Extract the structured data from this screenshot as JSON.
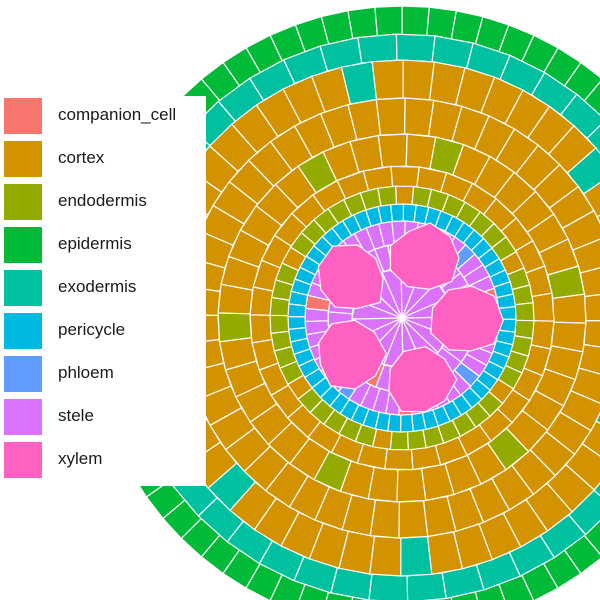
{
  "legend": {
    "items": [
      {
        "label": "companion_cell",
        "color": "#F8766D"
      },
      {
        "label": "cortex",
        "color": "#D39200"
      },
      {
        "label": "endodermis",
        "color": "#93AA00"
      },
      {
        "label": "epidermis",
        "color": "#00BA38"
      },
      {
        "label": "exodermis",
        "color": "#00C19F"
      },
      {
        "label": "pericycle",
        "color": "#00B9E3"
      },
      {
        "label": "phloem",
        "color": "#619CFF"
      },
      {
        "label": "stele",
        "color": "#DB72FB"
      },
      {
        "label": "xylem",
        "color": "#FF61C3"
      }
    ]
  },
  "colors": {
    "companion_cell": "#F8766D",
    "cortex": "#D39200",
    "endodermis": "#93AA00",
    "epidermis": "#00BA38",
    "exodermis": "#00C19F",
    "pericycle": "#00B9E3",
    "phloem": "#619CFF",
    "stele": "#DB72FB",
    "xylem": "#FF61C3",
    "cell_border": "#ffffff"
  },
  "counts": {
    "epidermis": 72,
    "exodermis": 46,
    "cortex_rings": 4,
    "endodermis": 46,
    "pericycle": 56,
    "xylem_vessels": 5,
    "stele_rings": 3
  }
}
